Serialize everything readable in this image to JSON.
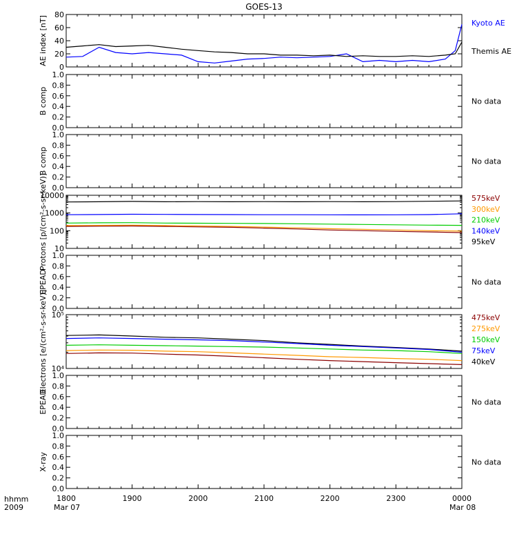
{
  "figure": {
    "title": "GOES-13",
    "x_label_top": "hhmm",
    "x_label_bottom": "2009",
    "x_ticks": [
      "1800",
      "1900",
      "2000",
      "2100",
      "2200",
      "2300",
      "0000"
    ],
    "x_date_start": "Mar 07",
    "x_date_end": "Mar 08",
    "no_data": "No data"
  },
  "chart_data": [
    {
      "type": "line",
      "ylabel": "AE index [nT]",
      "ylim": [
        0,
        80
      ],
      "yticks": [
        "0",
        "20",
        "40",
        "60",
        "80"
      ],
      "x_hours": [
        18.0,
        18.25,
        18.5,
        18.75,
        19.0,
        19.25,
        19.5,
        19.75,
        20.0,
        20.25,
        20.5,
        20.75,
        21.0,
        21.25,
        21.5,
        21.75,
        22.0,
        22.25,
        22.5,
        22.75,
        23.0,
        23.25,
        23.5,
        23.75,
        23.9,
        24.0
      ],
      "series": [
        {
          "name": "Kyoto AE",
          "color": "#0000ff",
          "values": [
            15,
            16,
            30,
            22,
            20,
            22,
            20,
            18,
            8,
            6,
            9,
            12,
            13,
            15,
            14,
            15,
            16,
            20,
            8,
            10,
            8,
            10,
            8,
            12,
            25,
            65
          ]
        },
        {
          "name": "Themis AE",
          "color": "#000000",
          "values": [
            30,
            32,
            34,
            31,
            32,
            33,
            30,
            27,
            25,
            23,
            22,
            20,
            20,
            18,
            18,
            17,
            18,
            16,
            17,
            16,
            16,
            17,
            16,
            18,
            20,
            38
          ]
        }
      ]
    },
    {
      "type": "line",
      "ylabel": "B comp",
      "ylim": [
        0,
        1
      ],
      "yticks": [
        "0.0",
        "0.2",
        "0.4",
        "0.6",
        "0.8",
        "1.0"
      ],
      "series": []
    },
    {
      "type": "line",
      "ylabel": "B comp",
      "ylim": [
        0,
        1
      ],
      "yticks": [
        "0.0",
        "0.2",
        "0.4",
        "0.6",
        "0.8",
        "1.0"
      ],
      "series": []
    },
    {
      "type": "line",
      "ylabel": "Protons [p/(cm²-s-sr-keV)]",
      "log_scale": true,
      "ylim": [
        10,
        10000
      ],
      "yticks": [
        "10",
        "100",
        "1000",
        "10000"
      ],
      "x_hours": [
        18.0,
        18.5,
        19.0,
        19.5,
        20.0,
        20.5,
        21.0,
        21.5,
        22.0,
        22.5,
        23.0,
        23.5,
        24.0
      ],
      "series": [
        {
          "name": "95keV",
          "color": "#000000",
          "values": [
            4200,
            4300,
            4500,
            4300,
            4400,
            4300,
            4400,
            4300,
            4400,
            4300,
            4400,
            4600,
            4800
          ]
        },
        {
          "name": "140keV",
          "color": "#0000ff",
          "values": [
            800,
            820,
            850,
            830,
            820,
            810,
            800,
            800,
            790,
            780,
            790,
            810,
            900
          ]
        },
        {
          "name": "210keV",
          "color": "#00cc00",
          "values": [
            270,
            280,
            285,
            270,
            265,
            260,
            255,
            245,
            235,
            225,
            215,
            205,
            200
          ]
        },
        {
          "name": "300keV",
          "color": "#ff9900",
          "values": [
            195,
            200,
            205,
            195,
            185,
            175,
            160,
            145,
            130,
            120,
            110,
            100,
            95
          ]
        },
        {
          "name": "575keV",
          "color": "#8b0000",
          "values": [
            175,
            180,
            185,
            175,
            165,
            155,
            140,
            125,
            110,
            100,
            92,
            85,
            78
          ]
        }
      ]
    },
    {
      "type": "line",
      "ylabel": "EPEAD",
      "ylim": [
        0,
        1
      ],
      "yticks": [
        "0.0",
        "0.2",
        "0.4",
        "0.6",
        "0.8",
        "1.0"
      ],
      "series": []
    },
    {
      "type": "line",
      "ylabel": "Electrons [e/(cm²-s-sr-keV)]",
      "log_scale": true,
      "ylim": [
        10000,
        100000
      ],
      "yticks": [
        "10⁴",
        "10⁵"
      ],
      "x_hours": [
        18.0,
        18.5,
        19.0,
        19.5,
        20.0,
        20.5,
        21.0,
        21.5,
        22.0,
        22.5,
        23.0,
        23.5,
        24.0
      ],
      "series": [
        {
          "name": "40keV",
          "color": "#000000",
          "values": [
            41000,
            42000,
            40000,
            38000,
            37000,
            35000,
            33000,
            30000,
            28000,
            26000,
            24500,
            23000,
            21000
          ]
        },
        {
          "name": "75keV",
          "color": "#0000ff",
          "values": [
            36000,
            37000,
            36000,
            35000,
            34000,
            33000,
            31000,
            29000,
            27000,
            25500,
            24000,
            22500,
            20000
          ]
        },
        {
          "name": "150keV",
          "color": "#00cc00",
          "values": [
            27000,
            27500,
            27000,
            26500,
            26000,
            25500,
            25000,
            24000,
            23000,
            22000,
            21500,
            20500,
            19000
          ]
        },
        {
          "name": "275keV",
          "color": "#ff9900",
          "values": [
            21500,
            22000,
            21800,
            21000,
            20500,
            19500,
            18500,
            17500,
            16500,
            16000,
            15300,
            14800,
            14000
          ]
        },
        {
          "name": "475keV",
          "color": "#8b0000",
          "values": [
            19000,
            19500,
            19300,
            18500,
            17800,
            16800,
            15800,
            14800,
            14000,
            13400,
            12800,
            12300,
            11800
          ]
        }
      ]
    },
    {
      "type": "line",
      "ylabel": "EPEAD",
      "ylim": [
        0,
        1
      ],
      "yticks": [
        "0.0",
        "0.2",
        "0.4",
        "0.6",
        "0.8",
        "1.0"
      ],
      "series": []
    },
    {
      "type": "line",
      "ylabel": "X-ray",
      "ylim": [
        0,
        1
      ],
      "yticks": [
        "0.0",
        "0.2",
        "0.4",
        "0.6",
        "0.8",
        "1.0"
      ],
      "series": []
    }
  ]
}
